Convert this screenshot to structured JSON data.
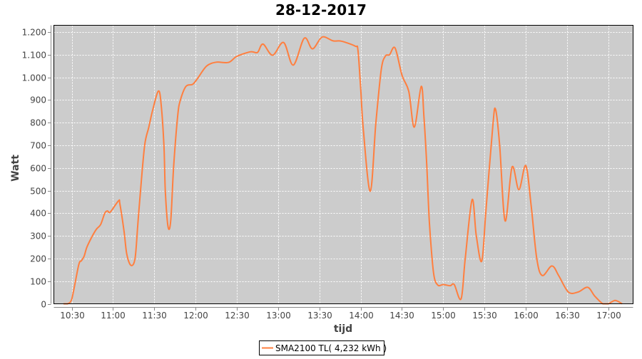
{
  "chart_data": {
    "type": "line",
    "title": "28-12-2017",
    "xlabel": "tijd",
    "ylabel": "Watt",
    "xlim": [
      "10:17",
      "17:18"
    ],
    "ylim": [
      0,
      1230
    ],
    "grid": true,
    "legend_position": "bottom",
    "x_ticks": [
      "10:30",
      "11:00",
      "11:30",
      "12:00",
      "12:30",
      "13:00",
      "13:30",
      "14:00",
      "14:30",
      "15:00",
      "15:30",
      "16:00",
      "16:30",
      "17:00"
    ],
    "y_ticks": [
      0,
      100,
      200,
      300,
      400,
      500,
      600,
      700,
      800,
      900,
      1000,
      1100,
      1200
    ],
    "y_tick_labels": [
      "0",
      "100",
      "200",
      "300",
      "400",
      "500",
      "600",
      "700",
      "800",
      "900",
      "1.000",
      "1.100",
      "1.200"
    ],
    "colors": {
      "plot_background": "#cccccc",
      "grid": "#ffffff",
      "series": "#ff7f3f"
    },
    "series": [
      {
        "name": "SMA2100 TL( 4,232 kWh )",
        "x": [
          "10:24",
          "10:27",
          "10:30",
          "10:35",
          "10:37",
          "10:39",
          "10:41",
          "10:45",
          "10:48",
          "10:51",
          "10:54",
          "10:56",
          "10:58",
          "11:04",
          "11:05",
          "11:08",
          "11:10",
          "11:13",
          "11:16",
          "11:18",
          "11:20",
          "11:23",
          "11:26",
          "11:29",
          "11:33",
          "11:35",
          "11:37",
          "11:38",
          "11:40",
          "11:42",
          "11:44",
          "11:47",
          "11:49",
          "11:53",
          "11:58",
          "12:02",
          "12:08",
          "12:15",
          "12:24",
          "12:30",
          "12:40",
          "12:45",
          "12:49",
          "12:56",
          "13:04",
          "13:11",
          "13:19",
          "13:25",
          "13:32",
          "13:40",
          "13:46",
          "13:56",
          "13:58",
          "14:00",
          "14:02",
          "14:07",
          "14:11",
          "14:15",
          "14:18",
          "14:21",
          "14:25",
          "14:30",
          "14:35",
          "14:39",
          "14:44",
          "14:46",
          "14:48",
          "14:50",
          "14:53",
          "14:56",
          "15:00",
          "15:05",
          "15:08",
          "15:13",
          "15:16",
          "15:21",
          "15:24",
          "15:28",
          "15:31",
          "15:36",
          "15:38",
          "15:41",
          "15:45",
          "15:50",
          "15:55",
          "16:00",
          "16:04",
          "16:08",
          "16:12",
          "16:19",
          "16:24",
          "16:31",
          "16:38",
          "16:45",
          "16:50",
          "16:56",
          "17:00",
          "17:05",
          "17:10"
        ],
        "y": [
          0,
          0,
          20,
          170,
          190,
          210,
          250,
          300,
          330,
          350,
          400,
          410,
          405,
          455,
          440,
          320,
          220,
          170,
          200,
          350,
          500,
          700,
          780,
          860,
          940,
          880,
          700,
          500,
          340,
          370,
          600,
          830,
          900,
          960,
          970,
          1000,
          1050,
          1067,
          1066,
          1093,
          1113,
          1110,
          1147,
          1098,
          1154,
          1054,
          1173,
          1126,
          1178,
          1161,
          1160,
          1138,
          1120,
          953,
          764,
          497,
          795,
          1035,
          1094,
          1100,
          1130,
          1010,
          937,
          780,
          960,
          826,
          617,
          356,
          136,
          83,
          85,
          80,
          85,
          22,
          200,
          460,
          303,
          188,
          407,
          783,
          860,
          702,
          366,
          604,
          504,
          610,
          428,
          199,
          125,
          167,
          124,
          52,
          52,
          73,
          35,
          0,
          0,
          15,
          0
        ]
      }
    ]
  }
}
